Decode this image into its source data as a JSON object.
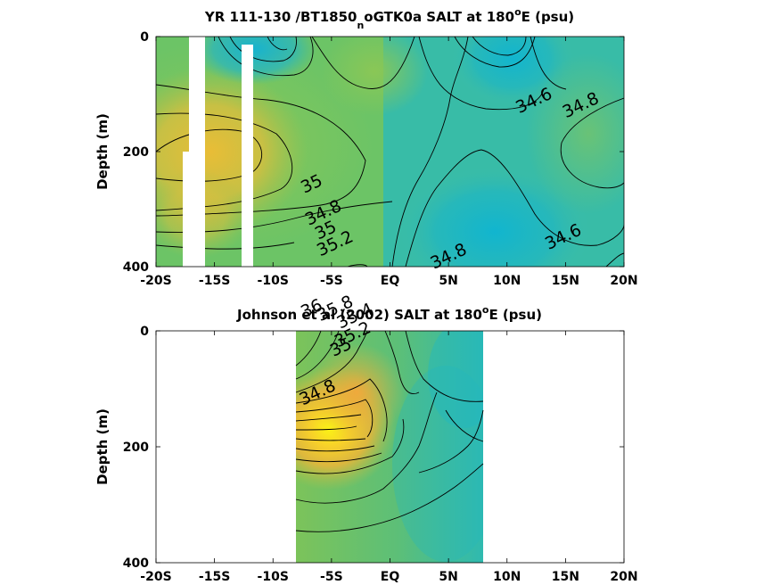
{
  "chart_data": [
    {
      "type": "heatmap",
      "title": "YR 111-130 /BT1850",
      "title_sub": "n",
      "title_rest": "oGTK0a SALT at 180",
      "title_sup": "o",
      "title_end": "E (psu)",
      "ylabel": "Depth (m)",
      "xlim": [
        -20,
        20
      ],
      "ylim": [
        0,
        400
      ],
      "y_inverted": true,
      "xticks": [
        "-20S",
        "-15S",
        "-10S",
        "-5S",
        "EQ",
        "5N",
        "10N",
        "15N",
        "20N"
      ],
      "yticks": [
        "0",
        "200",
        "400"
      ],
      "contour_labels": [
        {
          "text": "35",
          "x": -6.5,
          "y": 265
        },
        {
          "text": "34.8",
          "x": -5.5,
          "y": 315
        },
        {
          "text": "34.6",
          "x": 12.5,
          "y": 120
        },
        {
          "text": "34.8",
          "x": 16.5,
          "y": 128
        },
        {
          "text": "34.6",
          "x": 15.0,
          "y": 357
        }
      ],
      "gaps_no_data": [
        {
          "x": [
            -17.7,
            -16.2
          ],
          "y": [
            0,
            400
          ]
        },
        {
          "x": [
            -12.8,
            -12.0
          ],
          "y": [
            15,
            400
          ]
        },
        {
          "x": [
            -18.2,
            -17.7
          ],
          "y": [
            200,
            400
          ]
        }
      ]
    },
    {
      "type": "heatmap",
      "title": "Johnson et al (2002) SALT at 180",
      "title_sup": "o",
      "title_end": "E (psu)",
      "ylabel": "Depth (m)",
      "xlim": [
        -20,
        20
      ],
      "ylim": [
        0,
        400
      ],
      "y_inverted": true,
      "data_xrange": [
        -8,
        8
      ],
      "xticks": [
        "-20S",
        "-15S",
        "-10S",
        "-5S",
        "EQ",
        "5N",
        "10N",
        "15N",
        "20N"
      ],
      "yticks": [
        "0",
        "200",
        "400"
      ],
      "contour_labels": [
        {
          "text": "35",
          "x": -5.3,
          "y": 35
        },
        {
          "text": "35.2",
          "x": -4.5,
          "y": 58
        },
        {
          "text": "34.8",
          "x": 5.2,
          "y": 80
        },
        {
          "text": "36",
          "x": -6.5,
          "y": 170
        },
        {
          "text": "35.8",
          "x": -4.5,
          "y": 170
        },
        {
          "text": "35.4",
          "x": -2.8,
          "y": 183
        },
        {
          "text": "35.2",
          "x": -3.0,
          "y": 215
        },
        {
          "text": "35",
          "x": -4.0,
          "y": 237
        },
        {
          "text": "34.8",
          "x": -6.0,
          "y": 315
        }
      ]
    }
  ]
}
